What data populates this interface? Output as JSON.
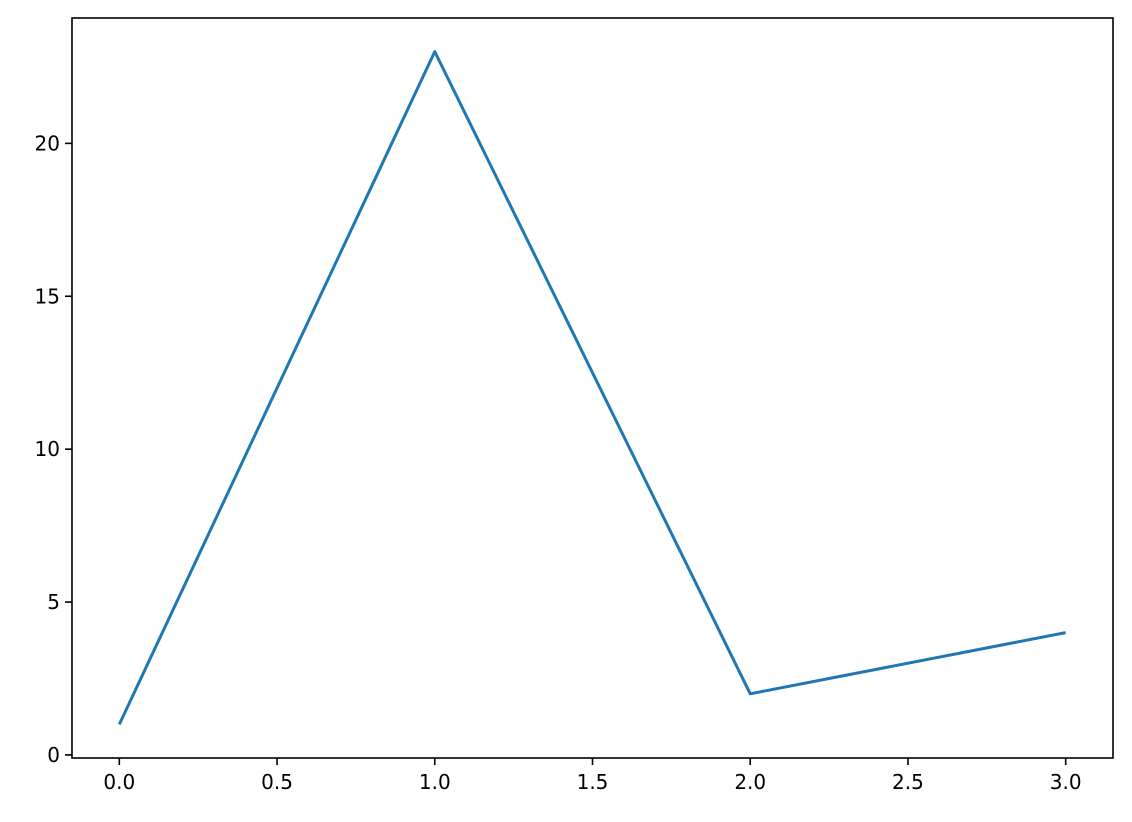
{
  "chart_data": {
    "type": "line",
    "title": "",
    "xlabel": "",
    "ylabel": "",
    "x": [
      0,
      1,
      2,
      3
    ],
    "series": [
      {
        "values": [
          1,
          23,
          2,
          4
        ],
        "color": "#1f77b4"
      }
    ],
    "xlim": [
      -0.15,
      3.15
    ],
    "ylim": [
      -0.1,
      24.1
    ],
    "xticks": [
      0.0,
      0.5,
      1.0,
      1.5,
      2.0,
      2.5,
      3.0
    ],
    "xtick_labels": [
      "0.0",
      "0.5",
      "1.0",
      "1.5",
      "2.0",
      "2.5",
      "3.0"
    ],
    "yticks": [
      0,
      5,
      10,
      15,
      20
    ],
    "ytick_labels": [
      "0",
      "5",
      "10",
      "15",
      "20"
    ],
    "grid": false,
    "legend": "none"
  }
}
